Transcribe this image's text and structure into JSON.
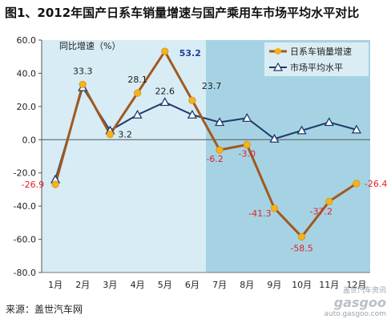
{
  "title": "图1、2012年国产日系车销量增速与国产乘用车市场平均水平对比",
  "source": "来源：盖世汽车网",
  "watermark": {
    "cn": "盖世汽车资讯",
    "brand": "gasgoo",
    "url": "auto.gasgoo.com"
  },
  "colors": {
    "series1_line": "#a0591f",
    "series1_marker": "#f3b41a",
    "series2_line": "#1f3a6b",
    "series2_marker": "#ffffff",
    "band_light": "#d7ecf4",
    "band_dark": "#a6d3e3",
    "label_negative": "#e0202e",
    "label_highlight": "#1f3f9a"
  },
  "chart_data": {
    "type": "line",
    "ylabel": "同比增速（%）",
    "xlabel": "",
    "ylim": [
      -80,
      60
    ],
    "yticks": [
      "60.0",
      "40.0",
      "20.0",
      "0.0",
      "-20.0",
      "-40.0",
      "-60.0",
      "-80.0"
    ],
    "categories": [
      "1月",
      "2月",
      "3月",
      "4月",
      "5月",
      "6月",
      "7月",
      "8月",
      "9月",
      "10月",
      "11月",
      "12月"
    ],
    "legend_position": "top-right",
    "series": [
      {
        "name": "日系车销量增速",
        "values": [
          -26.9,
          33.3,
          3.2,
          28.1,
          53.2,
          23.7,
          -6.2,
          -3.0,
          -41.3,
          -58.5,
          -37.2,
          -26.4
        ],
        "labels": [
          "-26.9",
          "33.3",
          "3.2",
          "28.1",
          "53.2",
          "23.7",
          "-6.2",
          "-3.0",
          "-41.3",
          "-58.5",
          "-37.2",
          "-26.4"
        ]
      },
      {
        "name": "市场平均水平",
        "values": [
          -24.0,
          31.5,
          5.5,
          15.0,
          22.6,
          15.0,
          10.5,
          13.0,
          0.5,
          5.5,
          10.5,
          6.0
        ],
        "labels": [
          "",
          "",
          "",
          "",
          "22.6",
          "",
          "",
          "",
          "",
          "",
          "",
          ""
        ]
      }
    ]
  }
}
